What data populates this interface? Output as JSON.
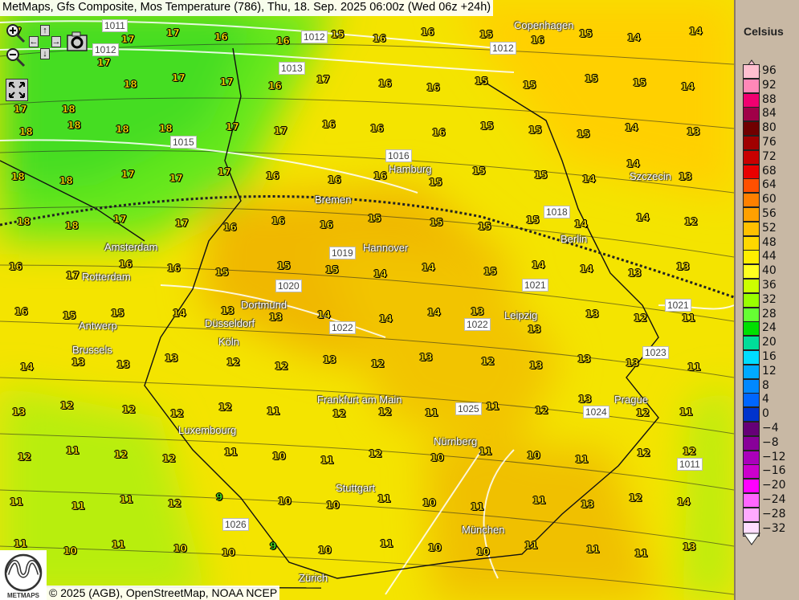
{
  "title": "MetMaps, Gfs Composite, Mos Temperature (786), Thu, 18. Sep. 2025 06:00z (Wed 06z +24h)",
  "copyright": "© 2025 (AGB), OpenStreetMap, NOAA NCEP",
  "logo_text": "METMAPS",
  "controls": {
    "zoom_in": "zoom-in-icon",
    "zoom_out": "zoom-out-icon",
    "pan": "pan-arrows-icon",
    "snapshot": "camera-icon",
    "fullscreen": "fullscreen-icon"
  },
  "legend": {
    "title": "Celsius",
    "entries": [
      {
        "v": "96",
        "c": "#ffc0d0"
      },
      {
        "v": "92",
        "c": "#ff88b8"
      },
      {
        "v": "88",
        "c": "#f00070"
      },
      {
        "v": "84",
        "c": "#a00048"
      },
      {
        "v": "80",
        "c": "#700000"
      },
      {
        "v": "76",
        "c": "#a00000"
      },
      {
        "v": "72",
        "c": "#c80000"
      },
      {
        "v": "68",
        "c": "#e80000"
      },
      {
        "v": "64",
        "c": "#ff5000"
      },
      {
        "v": "60",
        "c": "#ff8000"
      },
      {
        "v": "56",
        "c": "#ffa000"
      },
      {
        "v": "52",
        "c": "#ffc000"
      },
      {
        "v": "48",
        "c": "#ffd800"
      },
      {
        "v": "44",
        "c": "#ffee00"
      },
      {
        "v": "40",
        "c": "#ffff20"
      },
      {
        "v": "36",
        "c": "#ccff00"
      },
      {
        "v": "32",
        "c": "#99ff00"
      },
      {
        "v": "28",
        "c": "#66ff33"
      },
      {
        "v": "24",
        "c": "#00e000"
      },
      {
        "v": "20",
        "c": "#00dd99"
      },
      {
        "v": "16",
        "c": "#00ddff"
      },
      {
        "v": "12",
        "c": "#00aaff"
      },
      {
        "v": "8",
        "c": "#0088ff"
      },
      {
        "v": "4",
        "c": "#0066ff"
      },
      {
        "v": "0",
        "c": "#0033cc"
      },
      {
        "v": "−4",
        "c": "#660077"
      },
      {
        "v": "−8",
        "c": "#880099"
      },
      {
        "v": "−12",
        "c": "#aa00bb"
      },
      {
        "v": "−16",
        "c": "#cc00cc"
      },
      {
        "v": "−20",
        "c": "#ff00ff"
      },
      {
        "v": "−24",
        "c": "#ff66ff"
      },
      {
        "v": "−28",
        "c": "#ffaaff"
      },
      {
        "v": "−32",
        "c": "#ffddff"
      }
    ]
  },
  "cities": [
    "Copenhagen",
    "Szczecin",
    "Bremen",
    "Hamburg",
    "Amsterdam",
    "Rotterdam",
    "Berlin",
    "Hannover",
    "Dortmund",
    "Düsseldorf",
    "Köln",
    "Antwerp",
    "Brussels",
    "Leipzig",
    "Frankfurt am Main",
    "Prague",
    "Luxembourg",
    "Nürnberg",
    "Stuttgart",
    "München",
    "Zürich"
  ],
  "isobars": [
    "1011",
    "1012",
    "1012",
    "1012",
    "1013",
    "1015",
    "1016",
    "1018",
    "1020",
    "1021",
    "1022",
    "1023",
    "1024",
    "1025",
    "1026",
    "1011",
    "1019",
    "1021",
    "1022"
  ],
  "temperature_grid": [
    [
      17,
      17,
      17,
      17,
      16,
      16,
      15,
      16,
      16,
      15,
      16,
      15,
      14,
      14
    ],
    [
      17,
      18,
      18,
      17,
      17,
      16,
      17,
      16,
      16,
      15,
      15,
      15,
      15,
      14
    ],
    [
      18,
      18,
      18,
      18,
      17,
      17,
      16,
      16,
      16,
      15,
      15,
      15,
      14,
      13
    ],
    [
      18,
      18,
      17,
      17,
      17,
      16,
      16,
      16,
      15,
      15,
      15,
      14,
      14,
      13
    ],
    [
      18,
      18,
      17,
      17,
      16,
      16,
      16,
      15,
      15,
      15,
      15,
      14,
      14,
      12
    ],
    [
      16,
      17,
      16,
      16,
      15,
      15,
      15,
      14,
      14,
      15,
      14,
      14,
      13,
      13
    ],
    [
      16,
      15,
      15,
      14,
      13,
      13,
      14,
      14,
      14,
      13,
      13,
      13,
      12,
      11
    ],
    [
      14,
      13,
      13,
      13,
      12,
      12,
      13,
      12,
      13,
      12,
      13,
      13,
      13,
      11
    ],
    [
      13,
      12,
      12,
      12,
      12,
      11,
      12,
      12,
      11,
      11,
      12,
      13,
      12,
      11
    ],
    [
      12,
      11,
      12,
      12,
      11,
      10,
      11,
      12,
      10,
      11,
      10,
      11,
      12,
      12
    ],
    [
      11,
      11,
      11,
      12,
      9,
      10,
      10,
      11,
      10,
      11,
      11,
      13,
      12,
      14
    ],
    [
      11,
      10,
      11,
      10,
      10,
      9,
      10,
      11,
      10,
      10,
      11,
      11,
      11,
      13
    ]
  ]
}
